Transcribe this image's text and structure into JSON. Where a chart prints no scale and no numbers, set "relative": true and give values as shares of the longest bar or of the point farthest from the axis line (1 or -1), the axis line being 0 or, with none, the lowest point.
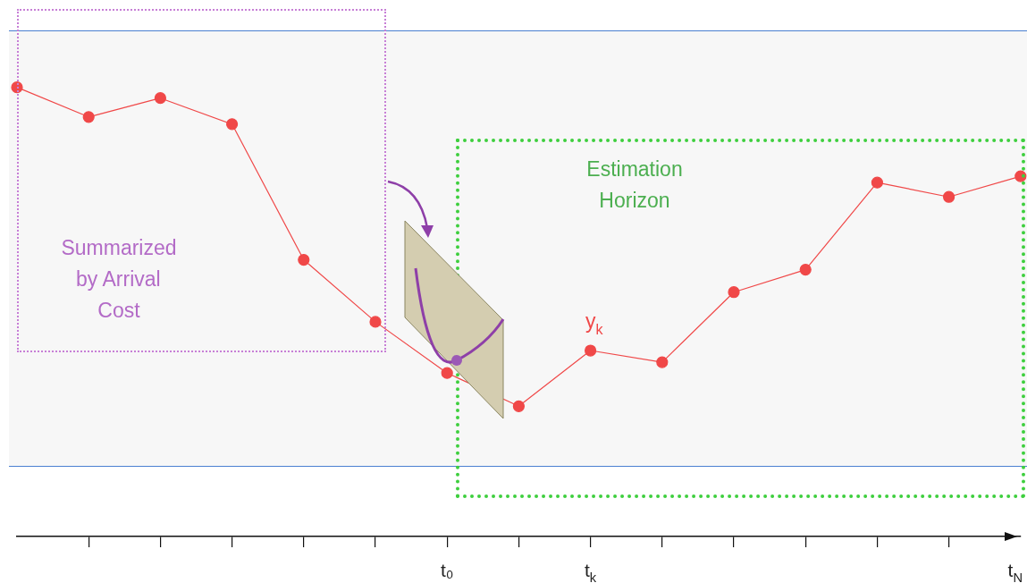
{
  "chart_data": {
    "type": "line",
    "relative": true,
    "categories": [
      null,
      null,
      null,
      null,
      null,
      null,
      "t₀",
      null,
      "t$_{k}$",
      null,
      null,
      null,
      null,
      null,
      "t$_{N}$"
    ],
    "series": [
      {
        "color": "#f04848",
        "values": [
          1,
          0.934,
          0.976,
          0.918,
          0.616,
          0.478,
          0.364,
          0.29,
          0.414,
          0.388,
          0.544,
          0.594,
          0.788,
          0.756,
          0.802
        ]
      }
    ],
    "bands": [
      {
        "axis": "y",
        "from": 0.158,
        "to": 1.126,
        "color": "#f7f7f7"
      }
    ],
    "ref_lines": [
      {
        "axis": "y",
        "value": 1.126,
        "color": "#4a7fd0"
      },
      {
        "axis": "y",
        "value": 0.158,
        "color": "#4a7fd0"
      }
    ],
    "annotations": [
      "Summarized by Arrival Cost",
      "Estimation Horizon",
      "y$_{k}$"
    ],
    "marker": "circle",
    "line_style": "solid",
    "grid": false,
    "legend": false,
    "tick_labels": "x"
  }
}
